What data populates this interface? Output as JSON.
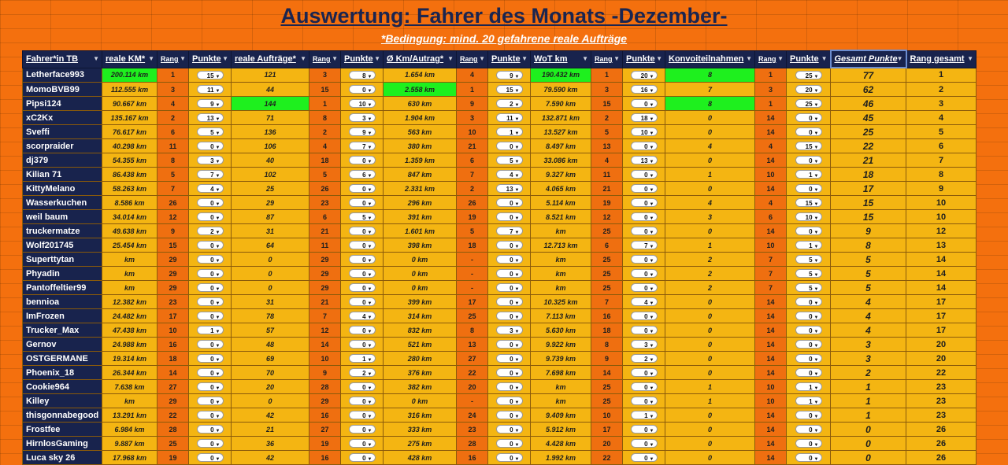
{
  "title": "Auswertung: Fahrer des Monats -Dezember-",
  "subtitle": "*Bedingung: mind. 20 gefahrene reale Aufträge",
  "headers": [
    "Fahrer*in TB",
    "reale KM*",
    "Rang",
    "Punkte",
    "reale Aufträge*",
    "Rang",
    "Punkte",
    "Ø Km/Autrag*",
    "Rang",
    "Punkte",
    "WoT km",
    "Rang",
    "Punkte",
    "Konvoiteilnahmen",
    "Rang",
    "Punkte",
    "Gesamt Punkte",
    "Rang gesamt"
  ],
  "filter_icon": "dropdown-arrow-icon",
  "colors": {
    "header": "#18234d",
    "yellow": "#f4b512",
    "orange": "#ef6f10",
    "green": "#1ef01e",
    "background": "#f4700e"
  },
  "rows": [
    {
      "name": "Letherface993",
      "km": "200.114 km",
      "km_rank": "1",
      "km_pts": "15",
      "auf": "121",
      "auf_rank": "3",
      "auf_pts": "8",
      "avg": "1.654 km",
      "avg_rank": "4",
      "avg_pts": "9",
      "wot": "190.432 km",
      "wot_rank": "1",
      "wot_pts": "20",
      "konv": "8",
      "konv_rank": "1",
      "konv_pts": "25",
      "total": "77",
      "rank": "1"
    },
    {
      "name": "MomoBVB99",
      "km": "112.555 km",
      "km_rank": "3",
      "km_pts": "11",
      "auf": "44",
      "auf_rank": "15",
      "auf_pts": "0",
      "avg": "2.558 km",
      "avg_rank": "1",
      "avg_pts": "15",
      "wot": "79.590 km",
      "wot_rank": "3",
      "wot_pts": "16",
      "konv": "7",
      "konv_rank": "3",
      "konv_pts": "20",
      "total": "62",
      "rank": "2"
    },
    {
      "name": "Pipsi124",
      "km": "90.667 km",
      "km_rank": "4",
      "km_pts": "9",
      "auf": "144",
      "auf_rank": "1",
      "auf_pts": "10",
      "avg": "630 km",
      "avg_rank": "9",
      "avg_pts": "2",
      "wot": "7.590 km",
      "wot_rank": "15",
      "wot_pts": "0",
      "konv": "8",
      "konv_rank": "1",
      "konv_pts": "25",
      "total": "46",
      "rank": "3"
    },
    {
      "name": "xC2Kx",
      "km": "135.167 km",
      "km_rank": "2",
      "km_pts": "13",
      "auf": "71",
      "auf_rank": "8",
      "auf_pts": "3",
      "avg": "1.904 km",
      "avg_rank": "3",
      "avg_pts": "11",
      "wot": "132.871 km",
      "wot_rank": "2",
      "wot_pts": "18",
      "konv": "0",
      "konv_rank": "14",
      "konv_pts": "0",
      "total": "45",
      "rank": "4"
    },
    {
      "name": "Sveffi",
      "km": "76.617 km",
      "km_rank": "6",
      "km_pts": "5",
      "auf": "136",
      "auf_rank": "2",
      "auf_pts": "9",
      "avg": "563 km",
      "avg_rank": "10",
      "avg_pts": "1",
      "wot": "13.527 km",
      "wot_rank": "5",
      "wot_pts": "10",
      "konv": "0",
      "konv_rank": "14",
      "konv_pts": "0",
      "total": "25",
      "rank": "5"
    },
    {
      "name": "scorpraider",
      "km": "40.298 km",
      "km_rank": "11",
      "km_pts": "0",
      "auf": "106",
      "auf_rank": "4",
      "auf_pts": "7",
      "avg": "380 km",
      "avg_rank": "21",
      "avg_pts": "0",
      "wot": "8.497 km",
      "wot_rank": "13",
      "wot_pts": "0",
      "konv": "4",
      "konv_rank": "4",
      "konv_pts": "15",
      "total": "22",
      "rank": "6"
    },
    {
      "name": "dj379",
      "km": "54.355 km",
      "km_rank": "8",
      "km_pts": "3",
      "auf": "40",
      "auf_rank": "18",
      "auf_pts": "0",
      "avg": "1.359 km",
      "avg_rank": "6",
      "avg_pts": "5",
      "wot": "33.086 km",
      "wot_rank": "4",
      "wot_pts": "13",
      "konv": "0",
      "konv_rank": "14",
      "konv_pts": "0",
      "total": "21",
      "rank": "7"
    },
    {
      "name": "Kilian 71",
      "km": "86.438 km",
      "km_rank": "5",
      "km_pts": "7",
      "auf": "102",
      "auf_rank": "5",
      "auf_pts": "6",
      "avg": "847 km",
      "avg_rank": "7",
      "avg_pts": "4",
      "wot": "9.327 km",
      "wot_rank": "11",
      "wot_pts": "0",
      "konv": "1",
      "konv_rank": "10",
      "konv_pts": "1",
      "total": "18",
      "rank": "8"
    },
    {
      "name": "KittyMelano",
      "km": "58.263 km",
      "km_rank": "7",
      "km_pts": "4",
      "auf": "25",
      "auf_rank": "26",
      "auf_pts": "0",
      "avg": "2.331 km",
      "avg_rank": "2",
      "avg_pts": "13",
      "wot": "4.065 km",
      "wot_rank": "21",
      "wot_pts": "0",
      "konv": "0",
      "konv_rank": "14",
      "konv_pts": "0",
      "total": "17",
      "rank": "9"
    },
    {
      "name": "Wasserkuchen",
      "km": "8.586 km",
      "km_rank": "26",
      "km_pts": "0",
      "auf": "29",
      "auf_rank": "23",
      "auf_pts": "0",
      "avg": "296 km",
      "avg_rank": "26",
      "avg_pts": "0",
      "wot": "5.114 km",
      "wot_rank": "19",
      "wot_pts": "0",
      "konv": "4",
      "konv_rank": "4",
      "konv_pts": "15",
      "total": "15",
      "rank": "10"
    },
    {
      "name": "weil baum",
      "km": "34.014 km",
      "km_rank": "12",
      "km_pts": "0",
      "auf": "87",
      "auf_rank": "6",
      "auf_pts": "5",
      "avg": "391 km",
      "avg_rank": "19",
      "avg_pts": "0",
      "wot": "8.521 km",
      "wot_rank": "12",
      "wot_pts": "0",
      "konv": "3",
      "konv_rank": "6",
      "konv_pts": "10",
      "total": "15",
      "rank": "10"
    },
    {
      "name": "truckermatze",
      "km": "49.638 km",
      "km_rank": "9",
      "km_pts": "2",
      "auf": "31",
      "auf_rank": "21",
      "auf_pts": "0",
      "avg": "1.601 km",
      "avg_rank": "5",
      "avg_pts": "7",
      "wot": "km",
      "wot_rank": "25",
      "wot_pts": "0",
      "konv": "0",
      "konv_rank": "14",
      "konv_pts": "0",
      "total": "9",
      "rank": "12"
    },
    {
      "name": "Wolf201745",
      "km": "25.454 km",
      "km_rank": "15",
      "km_pts": "0",
      "auf": "64",
      "auf_rank": "11",
      "auf_pts": "0",
      "avg": "398 km",
      "avg_rank": "18",
      "avg_pts": "0",
      "wot": "12.713 km",
      "wot_rank": "6",
      "wot_pts": "7",
      "konv": "1",
      "konv_rank": "10",
      "konv_pts": "1",
      "total": "8",
      "rank": "13"
    },
    {
      "name": "Superttytan",
      "km": "km",
      "km_rank": "29",
      "km_pts": "0",
      "auf": "0",
      "auf_rank": "29",
      "auf_pts": "0",
      "avg": "0 km",
      "avg_rank": "-",
      "avg_pts": "0",
      "wot": "km",
      "wot_rank": "25",
      "wot_pts": "0",
      "konv": "2",
      "konv_rank": "7",
      "konv_pts": "5",
      "total": "5",
      "rank": "14"
    },
    {
      "name": "Phyadin",
      "km": "km",
      "km_rank": "29",
      "km_pts": "0",
      "auf": "0",
      "auf_rank": "29",
      "auf_pts": "0",
      "avg": "0 km",
      "avg_rank": "-",
      "avg_pts": "0",
      "wot": "km",
      "wot_rank": "25",
      "wot_pts": "0",
      "konv": "2",
      "konv_rank": "7",
      "konv_pts": "5",
      "total": "5",
      "rank": "14"
    },
    {
      "name": "Pantoffeltier99",
      "km": "km",
      "km_rank": "29",
      "km_pts": "0",
      "auf": "0",
      "auf_rank": "29",
      "auf_pts": "0",
      "avg": "0 km",
      "avg_rank": "-",
      "avg_pts": "0",
      "wot": "km",
      "wot_rank": "25",
      "wot_pts": "0",
      "konv": "2",
      "konv_rank": "7",
      "konv_pts": "5",
      "total": "5",
      "rank": "14"
    },
    {
      "name": "bennioa",
      "km": "12.382 km",
      "km_rank": "23",
      "km_pts": "0",
      "auf": "31",
      "auf_rank": "21",
      "auf_pts": "0",
      "avg": "399 km",
      "avg_rank": "17",
      "avg_pts": "0",
      "wot": "10.325 km",
      "wot_rank": "7",
      "wot_pts": "4",
      "konv": "0",
      "konv_rank": "14",
      "konv_pts": "0",
      "total": "4",
      "rank": "17"
    },
    {
      "name": "ImFrozen",
      "km": "24.482 km",
      "km_rank": "17",
      "km_pts": "0",
      "auf": "78",
      "auf_rank": "7",
      "auf_pts": "4",
      "avg": "314 km",
      "avg_rank": "25",
      "avg_pts": "0",
      "wot": "7.113 km",
      "wot_rank": "16",
      "wot_pts": "0",
      "konv": "0",
      "konv_rank": "14",
      "konv_pts": "0",
      "total": "4",
      "rank": "17"
    },
    {
      "name": "Trucker_Max",
      "km": "47.438 km",
      "km_rank": "10",
      "km_pts": "1",
      "auf": "57",
      "auf_rank": "12",
      "auf_pts": "0",
      "avg": "832 km",
      "avg_rank": "8",
      "avg_pts": "3",
      "wot": "5.630 km",
      "wot_rank": "18",
      "wot_pts": "0",
      "konv": "0",
      "konv_rank": "14",
      "konv_pts": "0",
      "total": "4",
      "rank": "17"
    },
    {
      "name": "Gernov",
      "km": "24.988 km",
      "km_rank": "16",
      "km_pts": "0",
      "auf": "48",
      "auf_rank": "14",
      "auf_pts": "0",
      "avg": "521 km",
      "avg_rank": "13",
      "avg_pts": "0",
      "wot": "9.922 km",
      "wot_rank": "8",
      "wot_pts": "3",
      "konv": "0",
      "konv_rank": "14",
      "konv_pts": "0",
      "total": "3",
      "rank": "20"
    },
    {
      "name": "OSTGERMANE",
      "km": "19.314 km",
      "km_rank": "18",
      "km_pts": "0",
      "auf": "69",
      "auf_rank": "10",
      "auf_pts": "1",
      "avg": "280 km",
      "avg_rank": "27",
      "avg_pts": "0",
      "wot": "9.739 km",
      "wot_rank": "9",
      "wot_pts": "2",
      "konv": "0",
      "konv_rank": "14",
      "konv_pts": "0",
      "total": "3",
      "rank": "20"
    },
    {
      "name": "Phoenix_18",
      "km": "26.344 km",
      "km_rank": "14",
      "km_pts": "0",
      "auf": "70",
      "auf_rank": "9",
      "auf_pts": "2",
      "avg": "376 km",
      "avg_rank": "22",
      "avg_pts": "0",
      "wot": "7.698 km",
      "wot_rank": "14",
      "wot_pts": "0",
      "konv": "0",
      "konv_rank": "14",
      "konv_pts": "0",
      "total": "2",
      "rank": "22"
    },
    {
      "name": "Cookie964",
      "km": "7.638 km",
      "km_rank": "27",
      "km_pts": "0",
      "auf": "20",
      "auf_rank": "28",
      "auf_pts": "0",
      "avg": "382 km",
      "avg_rank": "20",
      "avg_pts": "0",
      "wot": "km",
      "wot_rank": "25",
      "wot_pts": "0",
      "konv": "1",
      "konv_rank": "10",
      "konv_pts": "1",
      "total": "1",
      "rank": "23"
    },
    {
      "name": "Killey",
      "km": "km",
      "km_rank": "29",
      "km_pts": "0",
      "auf": "0",
      "auf_rank": "29",
      "auf_pts": "0",
      "avg": "0 km",
      "avg_rank": "-",
      "avg_pts": "0",
      "wot": "km",
      "wot_rank": "25",
      "wot_pts": "0",
      "konv": "1",
      "konv_rank": "10",
      "konv_pts": "1",
      "total": "1",
      "rank": "23"
    },
    {
      "name": "thisgonnabegood",
      "km": "13.291 km",
      "km_rank": "22",
      "km_pts": "0",
      "auf": "42",
      "auf_rank": "16",
      "auf_pts": "0",
      "avg": "316 km",
      "avg_rank": "24",
      "avg_pts": "0",
      "wot": "9.409 km",
      "wot_rank": "10",
      "wot_pts": "1",
      "konv": "0",
      "konv_rank": "14",
      "konv_pts": "0",
      "total": "1",
      "rank": "23"
    },
    {
      "name": "Frostfee",
      "km": "6.984 km",
      "km_rank": "28",
      "km_pts": "0",
      "auf": "21",
      "auf_rank": "27",
      "auf_pts": "0",
      "avg": "333 km",
      "avg_rank": "23",
      "avg_pts": "0",
      "wot": "5.912 km",
      "wot_rank": "17",
      "wot_pts": "0",
      "konv": "0",
      "konv_rank": "14",
      "konv_pts": "0",
      "total": "0",
      "rank": "26"
    },
    {
      "name": "HirnlosGaming",
      "km": "9.887 km",
      "km_rank": "25",
      "km_pts": "0",
      "auf": "36",
      "auf_rank": "19",
      "auf_pts": "0",
      "avg": "275 km",
      "avg_rank": "28",
      "avg_pts": "0",
      "wot": "4.428 km",
      "wot_rank": "20",
      "wot_pts": "0",
      "konv": "0",
      "konv_rank": "14",
      "konv_pts": "0",
      "total": "0",
      "rank": "26"
    },
    {
      "name": "Luca sky 26",
      "km": "17.968 km",
      "km_rank": "19",
      "km_pts": "0",
      "auf": "42",
      "auf_rank": "16",
      "auf_pts": "0",
      "avg": "428 km",
      "avg_rank": "16",
      "avg_pts": "0",
      "wot": "1.992 km",
      "wot_rank": "22",
      "wot_pts": "0",
      "konv": "0",
      "konv_rank": "14",
      "konv_pts": "0",
      "total": "0",
      "rank": "26"
    }
  ],
  "highlights": {
    "km": [
      "Letherface993"
    ],
    "auf": [
      "Pipsi124"
    ],
    "avg": [
      "MomoBVB99"
    ],
    "wot": [
      "Letherface993"
    ],
    "konv": [
      "Letherface993",
      "Pipsi124"
    ],
    "total": [
      "Letherface993"
    ]
  }
}
